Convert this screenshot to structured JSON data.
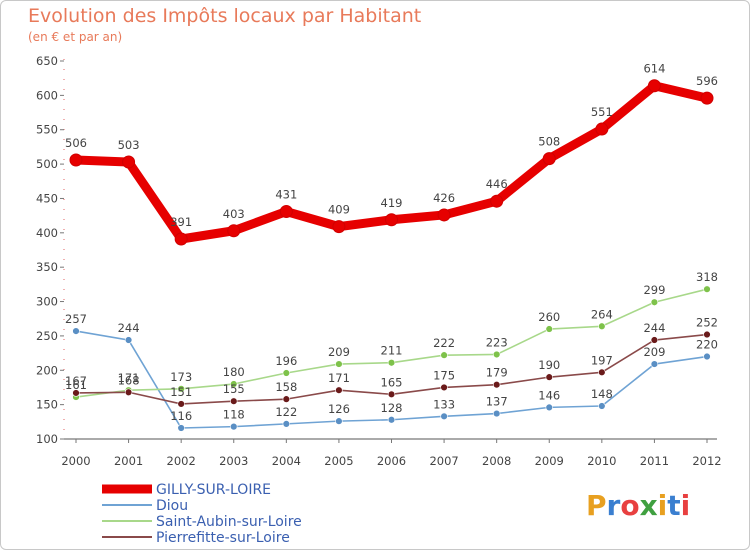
{
  "title": "Evolution des Impôts locaux par Habitant",
  "subtitle": "(en € et par an)",
  "logo": "Proxiti",
  "chart_data": {
    "type": "line",
    "title": "Evolution des Impôts locaux par Habitant",
    "subtitle": "(en € et par an)",
    "xlabel": "",
    "ylabel": "",
    "x": [
      "2000",
      "2001",
      "2002",
      "2003",
      "2004",
      "2005",
      "2006",
      "2007",
      "2008",
      "2009",
      "2010",
      "2011",
      "2012"
    ],
    "ylim": [
      100,
      650
    ],
    "yticks": [
      100,
      150,
      200,
      250,
      300,
      350,
      400,
      450,
      500,
      550,
      600,
      650
    ],
    "grid": false,
    "legend_position": "bottom-left",
    "series": [
      {
        "name": "GILLY-SUR-LOIRE",
        "color": "#e60000",
        "marker": "#e60000",
        "values": [
          506,
          503,
          391,
          403,
          431,
          409,
          419,
          426,
          446,
          508,
          551,
          614,
          596
        ]
      },
      {
        "name": "Diou",
        "color": "#6fa3d4",
        "marker": "#5a8fc4",
        "values": [
          257,
          244,
          116,
          118,
          122,
          126,
          128,
          133,
          137,
          146,
          148,
          209,
          220
        ]
      },
      {
        "name": "Saint-Aubin-sur-Loire",
        "color": "#a8d88a",
        "marker": "#7ec24a",
        "values": [
          161,
          171,
          173,
          180,
          196,
          209,
          211,
          222,
          223,
          260,
          264,
          299,
          318
        ]
      },
      {
        "name": "Pierrefitte-sur-Loire",
        "color": "#8a4a4a",
        "marker": "#6a1a1a",
        "values": [
          167,
          168,
          151,
          155,
          158,
          171,
          165,
          175,
          179,
          190,
          197,
          244,
          252
        ]
      }
    ]
  }
}
